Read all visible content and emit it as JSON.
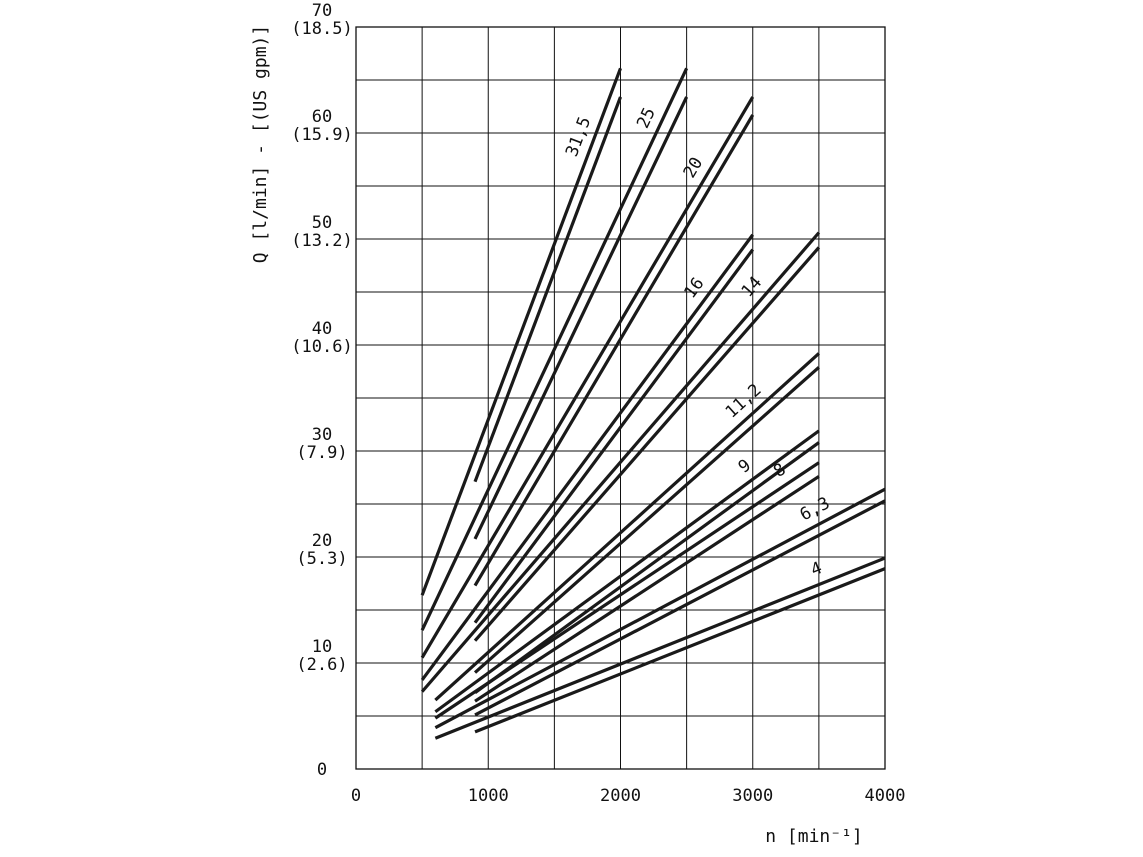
{
  "chart_data": {
    "type": "line",
    "title": "",
    "xlabel": "n [min⁻¹]",
    "ylabel": "Q [l/min] - [(US gpm)]",
    "xlim": [
      0,
      4000
    ],
    "ylim": [
      0,
      70
    ],
    "x_ticks": [
      {
        "value": 0,
        "label": "0"
      },
      {
        "value": 1000,
        "label": "1000"
      },
      {
        "value": 2000,
        "label": "2000"
      },
      {
        "value": 3000,
        "label": "3000"
      },
      {
        "value": 4000,
        "label": "4000"
      }
    ],
    "y_ticks": [
      {
        "value": 0,
        "label": "0",
        "sub": ""
      },
      {
        "value": 10,
        "label": "10",
        "sub": "(2.6)"
      },
      {
        "value": 20,
        "label": "20",
        "sub": "(5.3)"
      },
      {
        "value": 30,
        "label": "30",
        "sub": "(7.9)"
      },
      {
        "value": 40,
        "label": "40",
        "sub": "(10.6)"
      },
      {
        "value": 50,
        "label": "50",
        "sub": "(13.2)"
      },
      {
        "value": 60,
        "label": "60",
        "sub": "(15.9)"
      },
      {
        "value": 70,
        "label": "70",
        "sub": "(18.5)"
      }
    ],
    "grid": true,
    "series": [
      {
        "name": "31,5",
        "lines": [
          [
            [
              500,
              16.4
            ],
            [
              2000,
              66.1
            ]
          ],
          [
            [
              900,
              27.1
            ],
            [
              2000,
              63.4
            ]
          ]
        ]
      },
      {
        "name": "25",
        "lines": [
          [
            [
              500,
              13.1
            ],
            [
              2500,
              66.1
            ]
          ],
          [
            [
              900,
              21.7
            ],
            [
              2500,
              63.4
            ]
          ]
        ]
      },
      {
        "name": "20",
        "lines": [
          [
            [
              500,
              10.5
            ],
            [
              3000,
              63.4
            ]
          ],
          [
            [
              900,
              17.3
            ],
            [
              3000,
              61.7
            ]
          ]
        ]
      },
      {
        "name": "16",
        "lines": [
          [
            [
              500,
              8.4
            ],
            [
              3000,
              50.4
            ]
          ],
          [
            [
              900,
              13.8
            ],
            [
              3000,
              49.0
            ]
          ]
        ]
      },
      {
        "name": "14",
        "lines": [
          [
            [
              500,
              7.3
            ],
            [
              3500,
              50.6
            ]
          ],
          [
            [
              900,
              12.1
            ],
            [
              3500,
              49.2
            ]
          ]
        ]
      },
      {
        "name": "11,2",
        "lines": [
          [
            [
              600,
              6.5
            ],
            [
              3500,
              39.2
            ]
          ],
          [
            [
              900,
              9.1
            ],
            [
              3500,
              37.9
            ]
          ]
        ]
      },
      {
        "name": "9",
        "lines": [
          [
            [
              600,
              5.4
            ],
            [
              3500,
              31.9
            ]
          ],
          [
            [
              900,
              7.2
            ],
            [
              3500,
              30.8
            ]
          ]
        ]
      },
      {
        "name": "8",
        "lines": [
          [
            [
              600,
              4.8
            ],
            [
              3500,
              28.9
            ]
          ],
          [
            [
              900,
              6.4
            ],
            [
              3500,
              27.6
            ]
          ]
        ]
      },
      {
        "name": "6,3",
        "lines": [
          [
            [
              600,
              3.9
            ],
            [
              4000,
              26.4
            ]
          ],
          [
            [
              900,
              5.1
            ],
            [
              4000,
              25.3
            ]
          ]
        ]
      },
      {
        "name": "4",
        "lines": [
          [
            [
              600,
              2.9
            ],
            [
              4000,
              19.9
            ]
          ],
          [
            [
              900,
              3.5
            ],
            [
              4000,
              18.9
            ]
          ]
        ]
      }
    ]
  }
}
